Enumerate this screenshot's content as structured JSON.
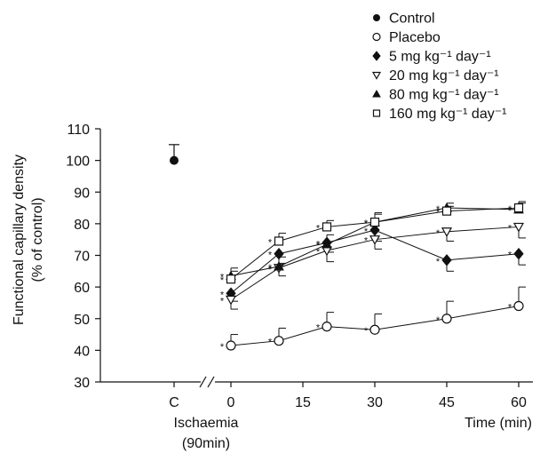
{
  "chart_data": {
    "type": "line",
    "title": "",
    "ylabel": "Functional capillary density (% of control)",
    "ylabel_lines": [
      "Functional capillary density",
      "(% of control)"
    ],
    "xlabel": "Time (min)",
    "x_category_label": "C",
    "x_group_label_lines": [
      "Ischaemia",
      "(90min)"
    ],
    "ylim": [
      30,
      110
    ],
    "yticks": [
      30,
      40,
      50,
      60,
      70,
      80,
      90,
      100,
      110
    ],
    "xticks": [
      0,
      15,
      30,
      45,
      60
    ],
    "x": [
      0,
      10,
      20,
      30,
      45,
      60
    ],
    "axis_break": true,
    "grid": false,
    "legend_position": "top-right",
    "control": {
      "name": "Control",
      "x_label": "C",
      "value": 100,
      "error": 5
    },
    "series": [
      {
        "name": "Placebo",
        "marker": "circle-open",
        "values": [
          41.5,
          43,
          47.5,
          46.5,
          50,
          54
        ],
        "errors": [
          3.5,
          4,
          4.5,
          5,
          5.5,
          6
        ],
        "error_dir": "up",
        "significant": [
          true,
          true,
          true,
          true,
          true,
          true
        ]
      },
      {
        "name": "5 mg kg⁻¹ day⁻¹",
        "marker": "diamond-filled",
        "values": [
          58,
          70.5,
          74,
          78,
          68.5,
          70.5
        ],
        "errors": [
          2.5,
          3,
          3,
          3.5,
          3.5,
          3.5
        ],
        "error_dir": "down",
        "significant": [
          true,
          true,
          true,
          true,
          true,
          true
        ]
      },
      {
        "name": "20 mg kg⁻¹ day⁻¹",
        "marker": "triangle-down-open",
        "values": [
          56,
          66,
          71.5,
          75,
          77.5,
          79
        ],
        "errors": [
          3,
          2.5,
          3.5,
          3,
          3,
          3.5
        ],
        "error_dir": "down",
        "significant": [
          true,
          true,
          true,
          true,
          true,
          true
        ]
      },
      {
        "name": "80 mg kg⁻¹ day⁻¹",
        "marker": "triangle-up-filled",
        "values": [
          63.5,
          66.5,
          73.5,
          80.5,
          85,
          84.5
        ],
        "errors": [
          2.5,
          3,
          3,
          3,
          1.5,
          2
        ],
        "error_dir": "up",
        "significant": [
          true,
          true,
          true,
          true,
          true,
          true
        ]
      },
      {
        "name": "160 mg kg⁻¹ day⁻¹",
        "marker": "square-open",
        "values": [
          62.5,
          74.5,
          79,
          80.5,
          84,
          85
        ],
        "errors": [
          2.5,
          2.5,
          2,
          2.5,
          1.5,
          2
        ],
        "error_dir": "up",
        "significant": [
          true,
          true,
          true,
          true,
          true,
          true
        ]
      }
    ],
    "significance_marker": "*"
  }
}
